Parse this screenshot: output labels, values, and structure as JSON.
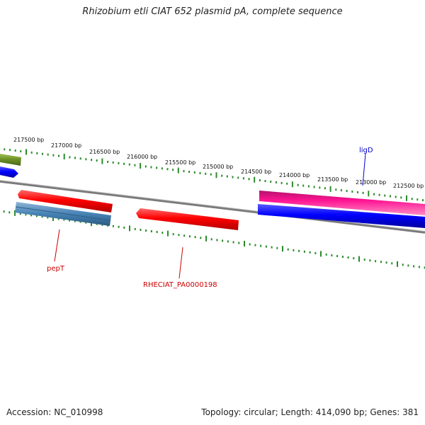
{
  "header": {
    "title": "Rhizobium etli CIAT 652 plasmid pA, complete sequence"
  },
  "footer": {
    "accession": "Accession: NC_010998",
    "summary": "Topology: circular; Length: 414,090 bp; Genes: 381"
  },
  "map": {
    "ruler_labels": [
      "217500 bp",
      "217000 bp",
      "216500 bp",
      "216000 bp",
      "215500 bp",
      "215000 bp",
      "214500 bp",
      "214000 bp",
      "213500 bp",
      "213000 bp",
      "212500 bp"
    ],
    "gene_labels": {
      "pepT": "pepT",
      "rheciat": "RHECIAT_PA0000198",
      "ligD": "ligD"
    },
    "colors": {
      "ruler_tick": "#2a8a2a",
      "backbone": "#808080",
      "red_gene": "#ff0000",
      "steel_gene": "#4682b4",
      "magenta_gene": "#ff1493",
      "blue_gene": "#0000ff",
      "olive_gene": "#6b8e23",
      "red_label": "#cc0000",
      "blue_label": "#0000cc"
    }
  }
}
